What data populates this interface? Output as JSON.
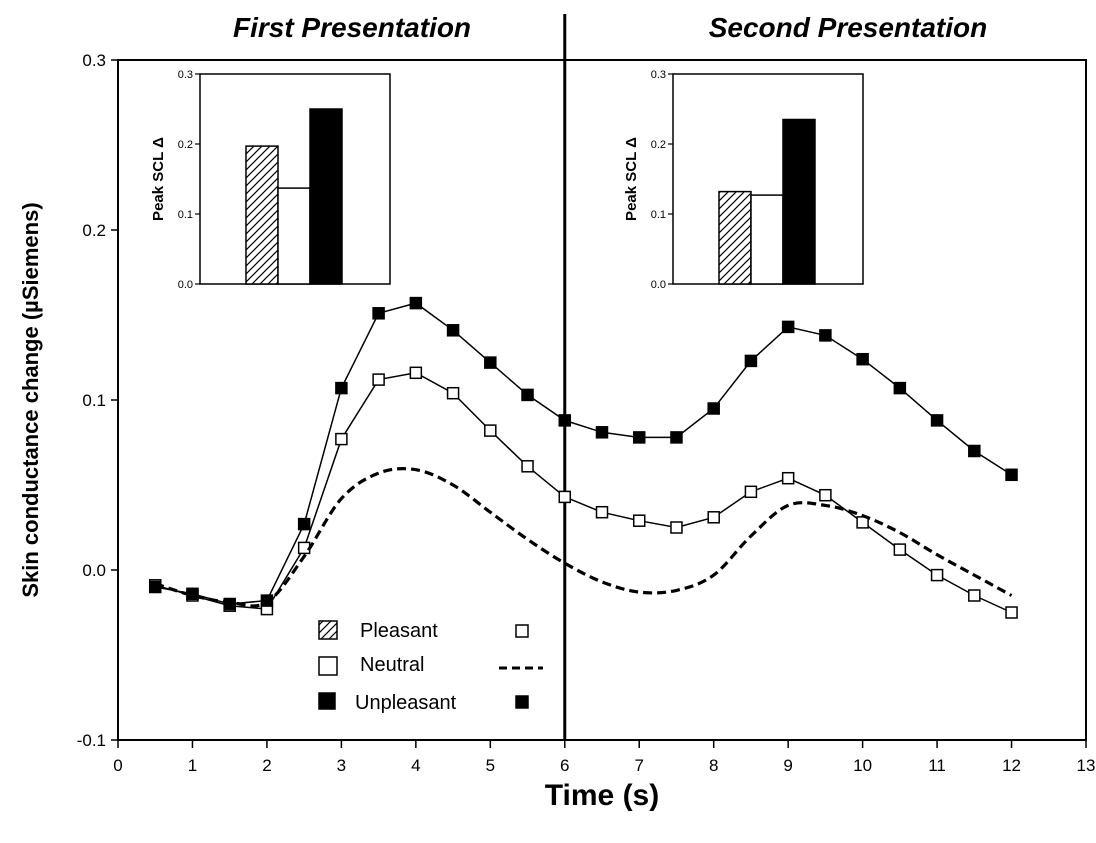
{
  "chart_data": {
    "type": "line",
    "xlabel": "Time (s)",
    "ylabel": "Skin conductance change (µSiemens)",
    "xlim": [
      0,
      13
    ],
    "ylim": [
      -0.1,
      0.3
    ],
    "xticks": [
      "0",
      "1",
      "2",
      "3",
      "4",
      "5",
      "6",
      "7",
      "8",
      "9",
      "10",
      "11",
      "12",
      "13"
    ],
    "yticks": [
      "-0.1",
      "0.0",
      "0.1",
      "0.2",
      "0.3"
    ],
    "grid": false,
    "sections": [
      {
        "label": "First Presentation"
      },
      {
        "label": "Second Presentation"
      }
    ],
    "divider_x": 6,
    "legend": {
      "position": "lower-center",
      "entries": [
        {
          "name": "Pleasant",
          "bar_style": "hatched",
          "line_style": "open-square"
        },
        {
          "name": "Neutral",
          "bar_style": "open",
          "line_style": "dashed"
        },
        {
          "name": "Unpleasant",
          "bar_style": "filled",
          "line_style": "filled-square"
        }
      ]
    },
    "x": [
      0.5,
      1,
      1.5,
      2,
      2.5,
      3,
      3.5,
      4,
      4.5,
      5,
      5.5,
      6,
      6.5,
      7,
      7.5,
      8,
      8.5,
      9,
      9.5,
      10,
      10.5,
      11,
      11.5,
      12
    ],
    "series": [
      {
        "style": "open-square",
        "values": [
          -0.009,
          -0.015,
          -0.021,
          -0.023,
          0.013,
          0.077,
          0.112,
          0.116,
          0.104,
          0.082,
          0.061,
          0.043,
          0.034,
          0.029,
          0.025,
          0.031,
          0.046,
          0.054,
          0.044,
          0.028,
          0.012,
          -0.003,
          -0.015,
          -0.025
        ]
      },
      {
        "style": "dashed",
        "values": [
          -0.008,
          -0.015,
          -0.019,
          -0.019,
          0.008,
          0.042,
          0.057,
          0.059,
          0.05,
          0.034,
          0.018,
          0.004,
          -0.007,
          -0.013,
          -0.012,
          -0.003,
          0.02,
          0.038,
          0.038,
          0.032,
          0.022,
          0.009,
          -0.003,
          -0.015
        ]
      },
      {
        "style": "filled-square",
        "values": [
          -0.01,
          -0.014,
          -0.02,
          -0.018,
          0.027,
          0.107,
          0.151,
          0.157,
          0.141,
          0.122,
          0.103,
          0.088,
          0.081,
          0.078,
          0.078,
          0.095,
          0.123,
          0.143,
          0.138,
          0.124,
          0.107,
          0.088,
          0.07,
          0.056
        ]
      }
    ],
    "insets": [
      {
        "type": "bar",
        "ylabel": "Peak SCL Δ",
        "ylim": [
          0,
          0.3
        ],
        "yticks": [
          "0.0",
          "0.1",
          "0.2",
          "0.3"
        ],
        "categories": [
          "Pleasant",
          "Neutral",
          "Unpleasant"
        ],
        "values": [
          0.197,
          0.137,
          0.25
        ]
      },
      {
        "type": "bar",
        "ylabel": "Peak SCL Δ",
        "ylim": [
          0,
          0.3
        ],
        "yticks": [
          "0.0",
          "0.1",
          "0.2",
          "0.3"
        ],
        "categories": [
          "Pleasant",
          "Neutral",
          "Unpleasant"
        ],
        "values": [
          0.132,
          0.127,
          0.235
        ]
      }
    ]
  }
}
